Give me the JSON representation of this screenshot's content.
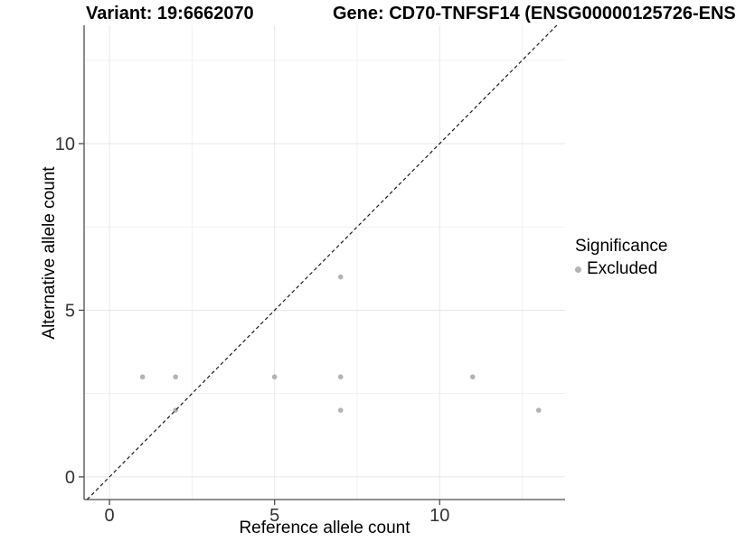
{
  "chart_data": {
    "type": "scatter",
    "title_left": "Variant: 19:6662070",
    "title_right": "Gene: CD70-TNFSF14 (ENSG00000125726-ENS",
    "xlabel": "Reference allele count",
    "ylabel": "Alternative allele count",
    "xlim": [
      -0.77,
      13.8
    ],
    "ylim": [
      -0.68,
      13.55
    ],
    "x_major_ticks": [
      0,
      5,
      10
    ],
    "y_major_ticks": [
      0,
      5,
      10
    ],
    "x_minor_gridlines": [
      2.5,
      7.5,
      12.5
    ],
    "y_minor_gridlines": [
      2.5,
      7.5,
      12.5
    ],
    "grid": true,
    "legend_position": "right",
    "series": [
      {
        "name": "Excluded",
        "color": "#b3b3b3",
        "points": [
          [
            1,
            3
          ],
          [
            2,
            3
          ],
          [
            5,
            3
          ],
          [
            7,
            3
          ],
          [
            11,
            3
          ],
          [
            2,
            2
          ],
          [
            7,
            2
          ],
          [
            13,
            2
          ],
          [
            7,
            6
          ]
        ]
      }
    ],
    "reference_line": {
      "type": "identity y=x",
      "style": "dashed",
      "color": "#1a1a1a"
    }
  },
  "legend": {
    "title": "Significance",
    "items": [
      {
        "label": "Excluded",
        "color": "#b3b3b3"
      }
    ]
  },
  "colors": {
    "background": "#ffffff",
    "grid_major": "#e7e7e7",
    "grid_minor": "#f1f1f1",
    "axis_line": "#4d4d4d",
    "tick_text": "#333333",
    "title_text": "#000000",
    "point": "#b3b3b3"
  }
}
